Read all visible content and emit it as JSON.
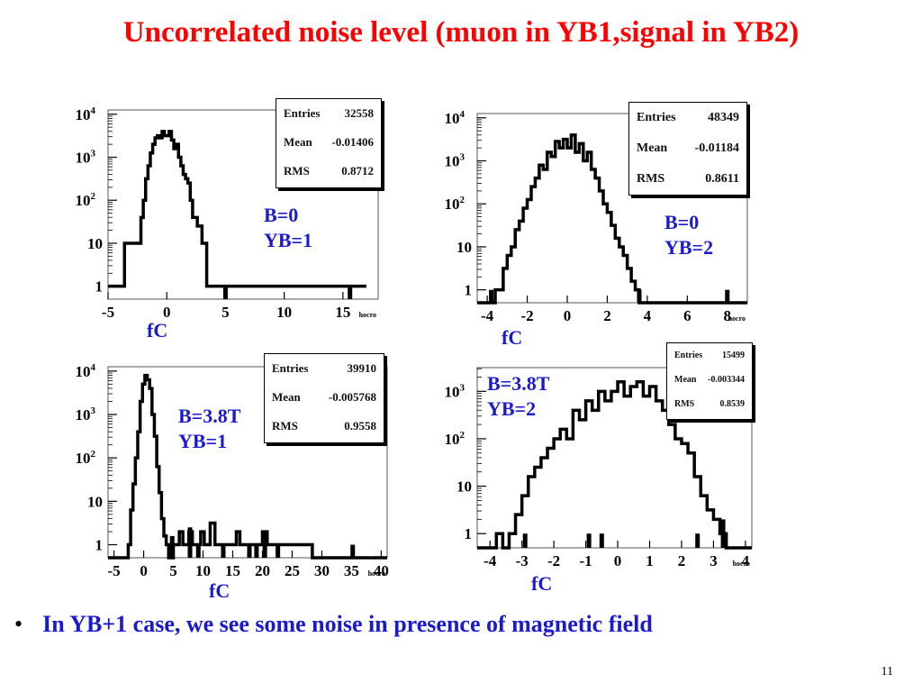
{
  "slide": {
    "title": "Uncorrelated noise level (muon in YB1,signal in YB2)",
    "bullet": "In YB+1 case, we see some noise in presence of magnetic field",
    "page_number": "11"
  },
  "chart_data": [
    {
      "type": "histogram",
      "xunit_label": "fC",
      "xaxis_corner_label": "hocro",
      "annotation": "B=0\nYB=1",
      "stats": {
        "entries_label": "Entries",
        "entries": "32558",
        "mean_label": "Mean",
        "mean": "-0.01406",
        "rms_label": "RMS",
        "rms": "0.8712"
      },
      "xlim": [
        -5,
        18
      ],
      "xticks": [
        -5,
        0,
        5,
        10,
        15
      ],
      "xtick_labels": [
        "-5",
        "0",
        "5",
        "10",
        "15"
      ],
      "ylog": true,
      "ylim_exp": [
        -0.3,
        4.1
      ],
      "ytick_labels": [
        "1",
        "10",
        "10^2",
        "10^3",
        "10^4"
      ],
      "bins": [
        [
          -5.0,
          0.0
        ],
        [
          -4.0,
          0.0
        ],
        [
          -3.6,
          1.0
        ],
        [
          -2.4,
          1.0
        ],
        [
          -2.2,
          1.6
        ],
        [
          -2.0,
          2.0
        ],
        [
          -1.8,
          2.5
        ],
        [
          -1.6,
          2.8
        ],
        [
          -1.4,
          3.1
        ],
        [
          -1.2,
          3.3
        ],
        [
          -1.0,
          3.45
        ],
        [
          -0.8,
          3.5
        ],
        [
          -0.6,
          3.45
        ],
        [
          -0.4,
          3.6
        ],
        [
          -0.2,
          3.5
        ],
        [
          0.0,
          3.5
        ],
        [
          0.2,
          3.6
        ],
        [
          0.4,
          3.4
        ],
        [
          0.6,
          3.2
        ],
        [
          0.8,
          3.3
        ],
        [
          1.0,
          3.0
        ],
        [
          1.2,
          2.8
        ],
        [
          1.4,
          2.6
        ],
        [
          1.6,
          2.5
        ],
        [
          1.8,
          2.4
        ],
        [
          2.0,
          2.0
        ],
        [
          2.2,
          1.6
        ],
        [
          2.4,
          1.6
        ],
        [
          2.6,
          1.4
        ],
        [
          2.8,
          1.4
        ],
        [
          3.0,
          1.0
        ],
        [
          3.2,
          1.0
        ],
        [
          3.4,
          0.0
        ],
        [
          5.2,
          0.0
        ],
        [
          5.4,
          0.0
        ],
        [
          17.0,
          0.0
        ]
      ],
      "spikes": [
        [
          5.0,
          0.0
        ],
        [
          15.6,
          0.0
        ]
      ]
    },
    {
      "type": "histogram",
      "xunit_label": "fC",
      "xaxis_corner_label": "hocro",
      "annotation": "B=0\nYB=2",
      "stats": {
        "entries_label": "Entries",
        "entries": "48349",
        "mean_label": "Mean",
        "mean": "-0.01184",
        "rms_label": "RMS",
        "rms": "0.8611"
      },
      "xlim": [
        -4.5,
        9
      ],
      "xticks": [
        -4,
        -2,
        0,
        2,
        4,
        6,
        8
      ],
      "xtick_labels": [
        "-4",
        "-2",
        "0",
        "2",
        "4",
        "6",
        "8"
      ],
      "ylog": true,
      "ylim_exp": [
        -0.3,
        4.1
      ],
      "ytick_labels": [
        "1",
        "10",
        "10^2",
        "10^3",
        "10^4"
      ],
      "bins": [
        [
          -4.5,
          -0.3
        ],
        [
          -3.6,
          0.0
        ],
        [
          -3.2,
          0.5
        ],
        [
          -3.0,
          0.8
        ],
        [
          -2.8,
          1.0
        ],
        [
          -2.6,
          1.4
        ],
        [
          -2.4,
          1.6
        ],
        [
          -2.2,
          1.9
        ],
        [
          -2.0,
          2.1
        ],
        [
          -1.8,
          2.4
        ],
        [
          -1.6,
          2.6
        ],
        [
          -1.4,
          2.9
        ],
        [
          -1.2,
          2.8
        ],
        [
          -1.0,
          3.2
        ],
        [
          -0.8,
          3.1
        ],
        [
          -0.6,
          3.45
        ],
        [
          -0.4,
          3.3
        ],
        [
          -0.2,
          3.5
        ],
        [
          0.0,
          3.3
        ],
        [
          0.2,
          3.6
        ],
        [
          0.4,
          3.2
        ],
        [
          0.6,
          3.4
        ],
        [
          0.8,
          3.0
        ],
        [
          1.0,
          3.2
        ],
        [
          1.2,
          2.8
        ],
        [
          1.4,
          2.6
        ],
        [
          1.6,
          2.3
        ],
        [
          1.8,
          2.0
        ],
        [
          2.0,
          1.8
        ],
        [
          2.2,
          1.5
        ],
        [
          2.4,
          1.2
        ],
        [
          2.6,
          1.0
        ],
        [
          2.8,
          0.8
        ],
        [
          3.0,
          0.5
        ],
        [
          3.2,
          0.2
        ],
        [
          3.4,
          0.0
        ],
        [
          3.6,
          -0.3
        ],
        [
          9.0,
          -0.3
        ]
      ],
      "spikes": [
        [
          -3.8,
          0.0
        ],
        [
          3.6,
          0.0
        ],
        [
          8.0,
          0.0
        ]
      ]
    },
    {
      "type": "histogram",
      "xunit_label": "fC",
      "xaxis_corner_label": "hocro",
      "annotation": "B=3.8T\nYB=1",
      "stats": {
        "entries_label": "Entries",
        "entries": "39910",
        "mean_label": "Mean",
        "mean": "-0.005768",
        "rms_label": "RMS",
        "rms": "0.9558"
      },
      "xlim": [
        -6,
        41
      ],
      "xticks": [
        -5,
        0,
        5,
        10,
        15,
        20,
        25,
        30,
        35,
        40
      ],
      "xtick_labels": [
        "-5",
        "0",
        "5",
        "10",
        "15",
        "20",
        "25",
        "30",
        "35",
        "40"
      ],
      "ylog": true,
      "ylim_exp": [
        -0.3,
        4.1
      ],
      "ytick_labels": [
        "1",
        "10",
        "10^2",
        "10^3",
        "10^4"
      ],
      "bins": [
        [
          -6.0,
          -0.3
        ],
        [
          -2.6,
          0.0
        ],
        [
          -2.2,
          0.8
        ],
        [
          -1.8,
          1.4
        ],
        [
          -1.4,
          2.0
        ],
        [
          -1.0,
          2.6
        ],
        [
          -0.6,
          3.3
        ],
        [
          -0.2,
          3.7
        ],
        [
          0.2,
          3.9
        ],
        [
          0.6,
          3.8
        ],
        [
          1.0,
          3.6
        ],
        [
          1.4,
          3.0
        ],
        [
          1.8,
          2.5
        ],
        [
          2.2,
          1.8
        ],
        [
          2.6,
          1.2
        ],
        [
          3.0,
          0.6
        ],
        [
          3.4,
          0.2
        ],
        [
          3.8,
          0.0
        ],
        [
          4.2,
          -0.3
        ],
        [
          5.0,
          0.0
        ],
        [
          6.0,
          0.3
        ],
        [
          6.6,
          0.0
        ],
        [
          7.6,
          0.3
        ],
        [
          8.2,
          0.0
        ],
        [
          9.6,
          0.3
        ],
        [
          10.2,
          0.0
        ],
        [
          11.2,
          0.5
        ],
        [
          12.0,
          0.0
        ],
        [
          15.6,
          0.3
        ],
        [
          16.2,
          0.0
        ],
        [
          20.0,
          0.3
        ],
        [
          20.8,
          0.0
        ],
        [
          27.6,
          0.0
        ],
        [
          28.4,
          -0.3
        ],
        [
          41.0,
          -0.3
        ]
      ],
      "spikes": [
        [
          4.8,
          0.2
        ],
        [
          7.8,
          0.4
        ],
        [
          9.2,
          0.0
        ],
        [
          13.4,
          0.0
        ],
        [
          17.8,
          0.0
        ],
        [
          19.0,
          0.0
        ],
        [
          20.4,
          0.3
        ],
        [
          22.6,
          0.0
        ],
        [
          35.2,
          0.0
        ]
      ]
    },
    {
      "type": "histogram",
      "xunit_label": "fC",
      "xaxis_corner_label": "hocro",
      "annotation": "B=3.8T\nYB=2",
      "stats": {
        "entries_label": "Entries",
        "entries": "15499",
        "mean_label": "Mean",
        "mean": "-0.003344",
        "rms_label": "RMS",
        "rms": "0.8539"
      },
      "xlim": [
        -4.4,
        4.2
      ],
      "xticks": [
        -4,
        -3,
        -2,
        -1,
        0,
        1,
        2,
        3,
        4
      ],
      "xtick_labels": [
        "-4",
        "-3",
        "-2",
        "-1",
        "0",
        "1",
        "2",
        "3",
        "4"
      ],
      "ylog": true,
      "ylim_exp": [
        -0.3,
        3.5
      ],
      "ytick_labels": [
        "1",
        "10",
        "10^2",
        "10^3"
      ],
      "bins": [
        [
          -4.4,
          -0.3
        ],
        [
          -3.8,
          0.0
        ],
        [
          -3.6,
          -0.3
        ],
        [
          -3.4,
          0.0
        ],
        [
          -3.2,
          0.4
        ],
        [
          -3.0,
          0.8
        ],
        [
          -2.8,
          1.2
        ],
        [
          -2.6,
          1.4
        ],
        [
          -2.4,
          1.6
        ],
        [
          -2.2,
          1.8
        ],
        [
          -2.0,
          2.0
        ],
        [
          -1.8,
          2.2
        ],
        [
          -1.6,
          2.0
        ],
        [
          -1.4,
          2.6
        ],
        [
          -1.2,
          2.4
        ],
        [
          -1.0,
          2.8
        ],
        [
          -0.8,
          2.6
        ],
        [
          -0.6,
          3.0
        ],
        [
          -0.4,
          2.8
        ],
        [
          -0.2,
          3.0
        ],
        [
          0.0,
          3.2
        ],
        [
          0.2,
          2.9
        ],
        [
          0.4,
          3.1
        ],
        [
          0.6,
          3.2
        ],
        [
          0.8,
          2.9
        ],
        [
          1.0,
          3.1
        ],
        [
          1.2,
          2.8
        ],
        [
          1.4,
          2.6
        ],
        [
          1.6,
          2.3
        ],
        [
          1.8,
          2.0
        ],
        [
          2.0,
          1.9
        ],
        [
          2.2,
          1.7
        ],
        [
          2.4,
          1.2
        ],
        [
          2.6,
          0.8
        ],
        [
          2.8,
          0.5
        ],
        [
          3.0,
          0.3
        ],
        [
          3.2,
          0.0
        ],
        [
          3.4,
          -0.3
        ],
        [
          4.2,
          -0.3
        ]
      ],
      "spikes": [
        [
          -2.9,
          0.0
        ],
        [
          -0.9,
          0.0
        ],
        [
          -0.5,
          0.0
        ],
        [
          2.5,
          0.0
        ],
        [
          3.3,
          0.3
        ]
      ]
    }
  ]
}
